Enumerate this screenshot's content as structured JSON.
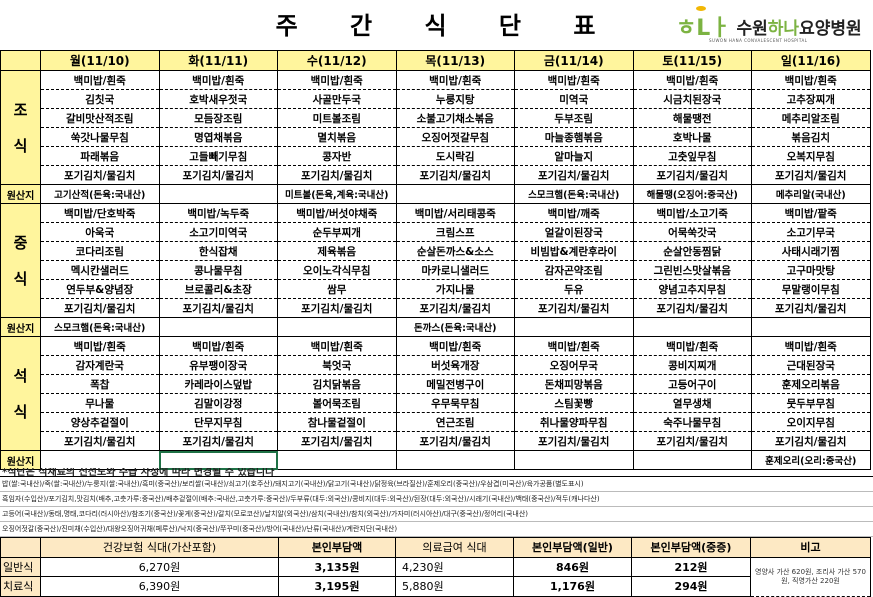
{
  "title": "주 간 식 단 표",
  "hospital": {
    "mark": "하나",
    "name_a": "수원",
    "name_b": "하나",
    "name_c": "요양병원",
    "subtitle": "SUWON HANA CONVALESCENT HOSPITAL",
    "brand_color": "#7cb342"
  },
  "days": [
    "월(11/10)",
    "화(11/11)",
    "수(11/12)",
    "목(11/13)",
    "금(11/14)",
    "토(11/15)",
    "일(11/16)"
  ],
  "origin_label": "원산지",
  "meals": [
    {
      "label_top": "조",
      "label_bottom": "식",
      "items": [
        [
          "백미밥/흰죽",
          "백미밥/흰죽",
          "백미밥/흰죽",
          "백미밥/흰죽",
          "백미밥/흰죽",
          "백미밥/흰죽",
          "백미밥/흰죽"
        ],
        [
          "김칫국",
          "호박새우젓국",
          "사골만두국",
          "누룽지탕",
          "미역국",
          "시금치된장국",
          "고추장찌개"
        ],
        [
          "갈비맛산적조림",
          "모듬장조림",
          "미트볼조림",
          "소불고기채소볶음",
          "두부조림",
          "해물땡전",
          "메추리알조림"
        ],
        [
          "쑥갓나물무침",
          "명엽채볶음",
          "멸치볶음",
          "오징어젓갈무침",
          "마늘종햄볶음",
          "호박나물",
          "볶음김치"
        ],
        [
          "파래볶음",
          "고들빼기무침",
          "콩자반",
          "도시락김",
          "알마늘지",
          "고춧잎무침",
          "오복지무침"
        ],
        [
          "포기김치/물김치",
          "포기김치/물김치",
          "포기김치/물김치",
          "포기김치/물김치",
          "포기김치/물김치",
          "포기김치/물김치",
          "포기김치/물김치"
        ]
      ],
      "origin": [
        "고기산적(돈육:국내산)",
        "",
        "미트볼(돈육,계육:국내산)",
        "",
        "스모크햄(돈육:국내산)",
        "해물땡(오징어:중국산)",
        "메추리알(국내산)"
      ]
    },
    {
      "label_top": "중",
      "label_bottom": "식",
      "items": [
        [
          "백미밥/단호박죽",
          "백미밥/녹두죽",
          "백미밥/버섯야채죽",
          "백미밥/서리태콩죽",
          "백미밥/깨죽",
          "백미밥/소고기죽",
          "백미밥/팥죽"
        ],
        [
          "아욱국",
          "소고기미역국",
          "순두부찌개",
          "크림스프",
          "얼갈이된장국",
          "어묵쑥갓국",
          "소고기무국"
        ],
        [
          "코다리조림",
          "한식잡채",
          "제육볶음",
          "순살돈까스&소스",
          "비빔밥&계란후라이",
          "순살안동찜닭",
          "사태시래기찜"
        ],
        [
          "멕시칸샐러드",
          "콩나물무침",
          "오이노각식무침",
          "마카로니샐러드",
          "감자곤약조림",
          "그린빈스맛살볶음",
          "고구마맛탕"
        ],
        [
          "연두부&양념장",
          "브로콜리&초장",
          "쌈무",
          "가지나물",
          "두유",
          "양념고추지무침",
          "무말랭이무침"
        ],
        [
          "포기김치/물김치",
          "포기김치/물김치",
          "포기김치/물김치",
          "포기김치/물김치",
          "포기김치/물김치",
          "포기김치/물김치",
          "포기김치/물김치"
        ]
      ],
      "origin": [
        "스모크햄(돈육:국내산)",
        "",
        "",
        "돈까스(돈육:국내산)",
        "",
        "",
        ""
      ]
    },
    {
      "label_top": "석",
      "label_bottom": "식",
      "items": [
        [
          "백미밥/흰죽",
          "백미밥/흰죽",
          "백미밥/흰죽",
          "백미밥/흰죽",
          "백미밥/흰죽",
          "백미밥/흰죽",
          "백미밥/흰죽"
        ],
        [
          "감자계란국",
          "유부팽이장국",
          "북엇국",
          "버섯육개장",
          "오징어무국",
          "콩비지찌개",
          "근대된장국"
        ],
        [
          "폭찹",
          "카레라이스덮밥",
          "김치닭볶음",
          "메밀전병구이",
          "돈채피망볶음",
          "고등어구이",
          "훈제오리볶음"
        ],
        [
          "무나물",
          "김말이강정",
          "볼어묵조림",
          "우무묵무침",
          "스팀꽃빵",
          "열무생채",
          "뭇두부무침"
        ],
        [
          "양상추겉절이",
          "단무지무침",
          "참나물겉절이",
          "연근조림",
          "취나물양파무침",
          "숙주나물무침",
          "오이지무침"
        ],
        [
          "포기김치/물김치",
          "포기김치/물김치",
          "포기김치/물김치",
          "포기김치/물김치",
          "포기김치/물김치",
          "포기김치/물김치",
          "포기김치/물김치"
        ]
      ],
      "origin": [
        "",
        "",
        "",
        "",
        "",
        "",
        "훈제오리(오리:중국산)"
      ]
    }
  ],
  "notes": {
    "notice": "*식단은 식재료의 신선도와 수급 사정에 따라 변경될 수 있습니다",
    "lines": [
      "밥(쌀:국내산)/죽(쌀:국내산)/누룽지(쌀:국내산)/흑미(중국산)/보리쌀(국내산)/쇠고기(호주산)/돼지고기(국내산)/닭고기(국내산)/닭정육(브라질산)/훈제오리(중국산)/우삼겹(미국산)/육가공품(별도표시)",
      "흑임자(수입산)/포기김치,맛김치(배추,고춧가루:중국산)/배추겉절이(배추:국내산,고춧가루:중국산)/두부류(대두:외국산)/콩비지(대두:외국산)/된장(대두:외국산)/시래기(국내산)/백태(중국산)/적두(캐나다산)",
      "고등어(국내산)/동태,명태,코다리(러시아산)/참조기(중국산)/꽃게(중국산)/갈치(모로코산)/날치알(외국산)/삼치(국내산)/참치(외국산)/가자미(러시아산)/대구(중국산)/정어리(국내산)",
      "오징어젓갈(중국산)/진미채(수입산)/대왕오징어귀채(페루산)/낙지(중국산)/쭈꾸미(중국산)/방어(국내산)/난류(국내산)/계란지단(국내산)"
    ]
  },
  "cost": {
    "headers": [
      "건강보험 식대(가산포함)",
      "본인부담액",
      "의료급여 식대",
      "본인부담액(일반)",
      "본인부담액(중증)",
      "비고"
    ],
    "rows": [
      {
        "label": "일반식",
        "values": [
          "6,270원",
          "3,135원",
          "4,230원",
          "846원",
          "212원"
        ]
      },
      {
        "label": "치료식",
        "values": [
          "6,390원",
          "3,195원",
          "5,880원",
          "1,176원",
          "294원"
        ]
      }
    ],
    "remark": "영양사 가산 620원, 조리사 가산 570원, 직영가산 220원"
  }
}
